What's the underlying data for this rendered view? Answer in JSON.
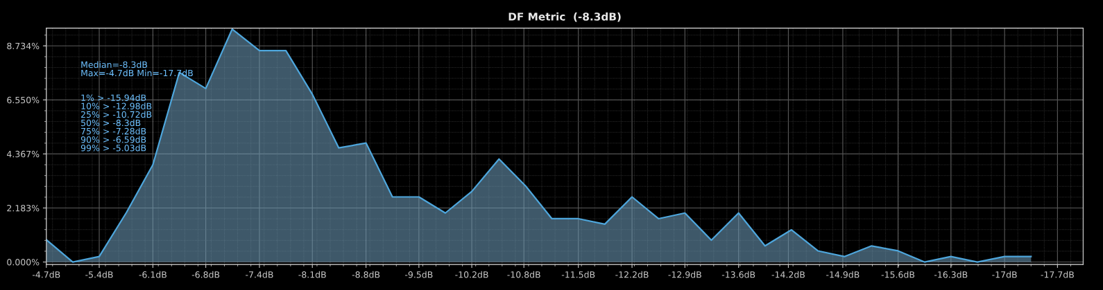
{
  "chart_data": {
    "type": "area",
    "title": "DF Metric  (-8.3dB)",
    "x": [
      -4.7,
      -5.04,
      -5.38,
      -5.73,
      -6.07,
      -6.41,
      -6.75,
      -7.09,
      -7.44,
      -7.78,
      -8.12,
      -8.46,
      -8.81,
      -9.15,
      -9.49,
      -9.83,
      -10.17,
      -10.52,
      -10.86,
      -11.2,
      -11.54,
      -11.88,
      -12.23,
      -12.57,
      -12.91,
      -13.25,
      -13.6,
      -13.94,
      -14.28,
      -14.62,
      -14.96,
      -15.31,
      -15.65,
      -15.99,
      -16.33,
      -16.67,
      -17.02,
      -17.36
    ],
    "series": [
      {
        "color": "#4ea6dc",
        "values": [
          0.9,
          0.0,
          0.22,
          2.0,
          3.93,
          7.66,
          7.01,
          9.41,
          8.54,
          8.54,
          6.78,
          4.61,
          4.81,
          2.63,
          2.63,
          1.98,
          2.85,
          4.16,
          3.08,
          1.75,
          1.75,
          1.53,
          2.63,
          1.75,
          1.98,
          0.88,
          1.98,
          0.65,
          1.3,
          0.45,
          0.22,
          0.65,
          0.45,
          0.0,
          0.22,
          0.0,
          0.22,
          0.22
        ]
      }
    ],
    "xlim": [
      -4.7,
      -18.03
    ],
    "xticks": [
      {
        "value": -4.7,
        "label": "-4.7dB"
      },
      {
        "value": -5.38,
        "label": "-5.4dB"
      },
      {
        "value": -6.07,
        "label": "-6.1dB"
      },
      {
        "value": -6.75,
        "label": "-6.8dB"
      },
      {
        "value": -7.44,
        "label": "-7.4dB"
      },
      {
        "value": -8.12,
        "label": "-8.1dB"
      },
      {
        "value": -8.81,
        "label": "-8.8dB"
      },
      {
        "value": -9.49,
        "label": "-9.5dB"
      },
      {
        "value": -10.17,
        "label": "-10.2dB"
      },
      {
        "value": -10.84,
        "label": "-10.8dB"
      },
      {
        "value": -11.54,
        "label": "-11.5dB"
      },
      {
        "value": -12.23,
        "label": "-12.2dB"
      },
      {
        "value": -12.91,
        "label": "-12.9dB"
      },
      {
        "value": -13.6,
        "label": "-13.6dB"
      },
      {
        "value": -14.24,
        "label": "-14.2dB"
      },
      {
        "value": -14.94,
        "label": "-14.9dB"
      },
      {
        "value": -15.65,
        "label": "-15.6dB"
      },
      {
        "value": -16.33,
        "label": "-16.3dB"
      },
      {
        "value": -17.02,
        "label": "-17dB"
      },
      {
        "value": -17.7,
        "label": "-17.7dB"
      }
    ],
    "ylim": [
      -0.1,
      9.45
    ],
    "yticks": [
      {
        "value": 0,
        "label": "0.000%"
      },
      {
        "value": 2.183,
        "label": "2.183%"
      },
      {
        "value": 4.367,
        "label": "4.367%"
      },
      {
        "value": 6.55,
        "label": "6.550%"
      },
      {
        "value": 8.734,
        "label": "8.734%"
      }
    ],
    "grid": true,
    "annotations": [
      "Median=-8.3dB\nMax=-4.7dB Min=-17.7dB",
      "1% > -15.94dB\n10% > -12.98dB\n25% > -10.72dB\n50% > -8.3dB\n75% > -7.28dB\n90% > -6.59dB\n99% > -5.03dB"
    ]
  }
}
